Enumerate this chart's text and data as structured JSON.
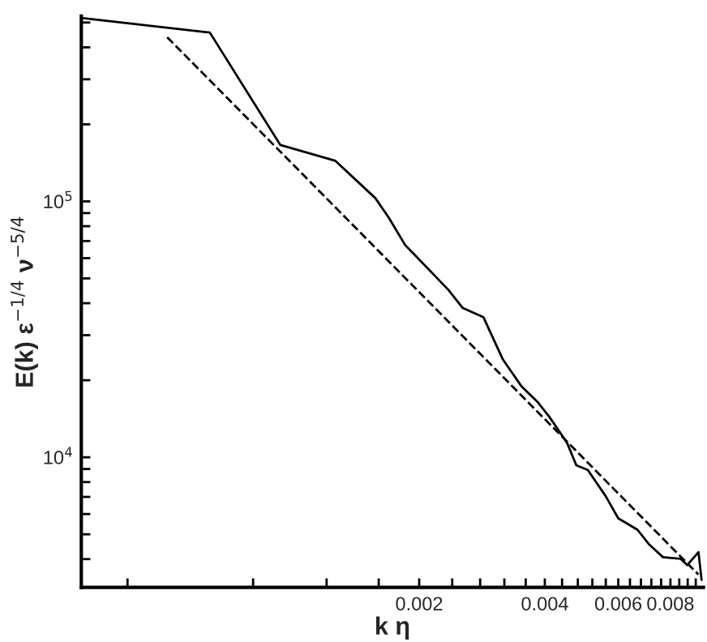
{
  "chart_data": {
    "type": "line",
    "xlabel": "k η",
    "ylabel": "E(k) ε$^{−1/4}$ ν$^{−5/4}$",
    "log": "xy",
    "grid": false,
    "legend": false,
    "marker": "none",
    "xlim": [
      0.00031,
      0.0096
    ],
    "ylim": [
      3100,
      530000
    ],
    "xticks": [
      {
        "value": 0.0004,
        "label": null
      },
      {
        "value": 0.0008,
        "label": null
      },
      {
        "value": 0.0012,
        "label": null
      },
      {
        "value": 0.0016,
        "label": null
      },
      0.002,
      {
        "value": 0.0024,
        "label": null
      },
      {
        "value": 0.0028,
        "label": null
      },
      {
        "value": 0.0032,
        "label": null
      },
      {
        "value": 0.0036,
        "label": null
      },
      0.004,
      {
        "value": 0.0044,
        "label": null
      },
      {
        "value": 0.0048,
        "label": null
      },
      {
        "value": 0.0052,
        "label": null
      },
      {
        "value": 0.0056,
        "label": null
      },
      0.006,
      {
        "value": 0.0064,
        "label": null
      },
      {
        "value": 0.0068,
        "label": null
      },
      {
        "value": 0.0072,
        "label": null
      },
      {
        "value": 0.0076,
        "label": null
      },
      0.008,
      {
        "value": 0.0084,
        "label": null
      },
      {
        "value": 0.0088,
        "label": null
      },
      {
        "value": 0.0092,
        "label": null
      }
    ],
    "yticks": [
      {
        "value": 4000,
        "label": null
      },
      {
        "value": 5000,
        "label": null
      },
      {
        "value": 6000,
        "label": null
      },
      {
        "value": 7000,
        "label": null
      },
      {
        "value": 8000,
        "label": null
      },
      {
        "value": 9000,
        "label": null
      },
      {
        "value": 10000,
        "label": "10$^{4}$"
      },
      {
        "value": 20000,
        "label": null
      },
      {
        "value": 30000,
        "label": null
      },
      {
        "value": 40000,
        "label": null
      },
      {
        "value": 50000,
        "label": null
      },
      {
        "value": 60000,
        "label": null
      },
      {
        "value": 70000,
        "label": null
      },
      {
        "value": 80000,
        "label": null
      },
      {
        "value": 90000,
        "label": null
      },
      {
        "value": 100000,
        "label": "10$^{5}$"
      },
      {
        "value": 200000,
        "label": null
      },
      {
        "value": 300000,
        "label": null
      },
      {
        "value": 400000,
        "label": null
      },
      {
        "value": 500000,
        "label": null
      }
    ],
    "series": [
      {
        "color": "#000000",
        "line_style": "solid",
        "x": [
          0.00031,
          0.00063,
          0.00093,
          0.00126,
          0.00157,
          0.00169,
          0.00185,
          0.00235,
          0.00254,
          0.00285,
          0.00317,
          0.00352,
          0.00385,
          0.0041,
          0.00452,
          0.00476,
          0.00507,
          0.00559,
          0.006,
          0.00667,
          0.0071,
          0.00768,
          0.00847,
          0.00878,
          0.00934,
          0.0095
        ],
        "values": [
          521000,
          457000,
          166000,
          144000,
          103000,
          86500,
          67600,
          45100,
          38400,
          35300,
          24200,
          18900,
          16400,
          14400,
          11400,
          9310,
          8920,
          7070,
          5770,
          5210,
          4580,
          4070,
          4010,
          3790,
          4260,
          3320
        ]
      },
      {
        "color": "#000000",
        "line_style": "dashed",
        "x": [
          0.000498,
          0.00934
        ],
        "values": [
          438000,
          3480
        ]
      }
    ]
  }
}
